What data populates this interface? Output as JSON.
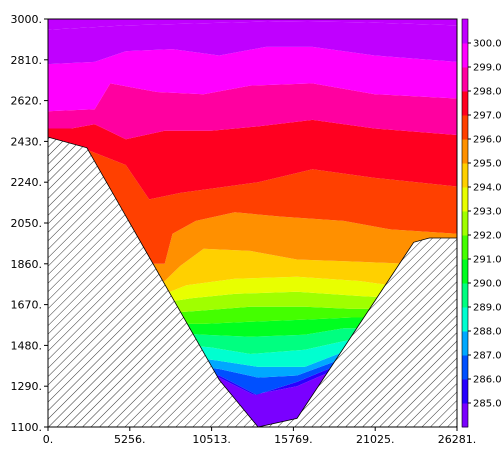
{
  "chart_data": {
    "type": "contour",
    "title": "",
    "xlabel": "",
    "ylabel": "",
    "xlim": [
      0,
      26281
    ],
    "ylim": [
      1100,
      3000
    ],
    "x_ticks": [
      0,
      5256,
      10513,
      15769,
      21025,
      26281
    ],
    "x_tick_labels": [
      "0.",
      "5256.",
      "10513.",
      "15769.",
      "21025.",
      "26281."
    ],
    "y_ticks": [
      1100,
      1290,
      1480,
      1670,
      1860,
      2050,
      2240,
      2430,
      2620,
      2810,
      3000
    ],
    "y_tick_labels": [
      "1100.",
      "1290.",
      "1480.",
      "1670.",
      "1860.",
      "2050.",
      "2240.",
      "2430.",
      "2620.",
      "2810.",
      "3000."
    ],
    "colorbar": {
      "levels": [
        285.0,
        286.0,
        287.0,
        288.0,
        289.0,
        290.0,
        291.0,
        292.0,
        293.0,
        294.0,
        295.0,
        296.0,
        297.0,
        298.0,
        299.0,
        300.0
      ],
      "labels": [
        "285.0",
        "286.0",
        "287.0",
        "288.0",
        "289.0",
        "290.0",
        "291.0",
        "292.0",
        "293.0",
        "294.0",
        "295.0",
        "296.0",
        "297.0",
        "298.0",
        "299.0",
        "300.0"
      ],
      "colors": [
        "#7a00ff",
        "#2800ff",
        "#0050ff",
        "#00a8ff",
        "#00ffd0",
        "#00ff80",
        "#00ff20",
        "#44ff00",
        "#a0ff00",
        "#e8ff00",
        "#ffd000",
        "#ff9000",
        "#ff4000",
        "#ff0020",
        "#ff00a0",
        "#ff00ff",
        "#c000ff"
      ]
    },
    "terrain": {
      "fill": "hatched",
      "outline": [
        [
          0,
          2450
        ],
        [
          2500,
          2400
        ],
        [
          11000,
          1320
        ],
        [
          13500,
          1100
        ],
        [
          16000,
          1140
        ],
        [
          23500,
          1960
        ],
        [
          24500,
          1980
        ],
        [
          26281,
          1980
        ]
      ]
    },
    "contour_boundaries": [
      [
        [
          1500,
          1400
        ],
        [
          7500,
          1400
        ],
        [
          11000,
          1330
        ],
        [
          13200,
          1250
        ],
        [
          16000,
          1290
        ],
        [
          19500,
          1400
        ],
        [
          21500,
          1480
        ],
        [
          26281,
          1480
        ]
      ],
      [
        [
          1500,
          1400
        ],
        [
          7500,
          1400
        ],
        [
          11000,
          1340
        ],
        [
          13400,
          1250
        ],
        [
          16000,
          1310
        ],
        [
          19000,
          1400
        ],
        [
          21000,
          1450
        ],
        [
          26281,
          1450
        ]
      ],
      [
        [
          1500,
          1400
        ],
        [
          7500,
          1400
        ],
        [
          11000,
          1370
        ],
        [
          13500,
          1330
        ],
        [
          16000,
          1340
        ],
        [
          19000,
          1420
        ],
        [
          21000,
          1470
        ],
        [
          26281,
          1470
        ]
      ],
      [
        [
          1500,
          1440
        ],
        [
          7500,
          1440
        ],
        [
          10800,
          1410
        ],
        [
          13500,
          1380
        ],
        [
          16500,
          1380
        ],
        [
          19000,
          1450
        ],
        [
          21000,
          1490
        ],
        [
          26281,
          1490
        ]
      ],
      [
        [
          1500,
          1490
        ],
        [
          7500,
          1490
        ],
        [
          10500,
          1470
        ],
        [
          13000,
          1440
        ],
        [
          16500,
          1460
        ],
        [
          19000,
          1500
        ],
        [
          21000,
          1520
        ],
        [
          26281,
          1520
        ]
      ],
      [
        [
          1500,
          1540
        ],
        [
          7500,
          1540
        ],
        [
          10000,
          1530
        ],
        [
          13000,
          1520
        ],
        [
          16500,
          1530
        ],
        [
          19000,
          1560
        ],
        [
          21500,
          1560
        ],
        [
          26281,
          1560
        ]
      ],
      [
        [
          1500,
          1580
        ],
        [
          7500,
          1580
        ],
        [
          10000,
          1580
        ],
        [
          13000,
          1590
        ],
        [
          16500,
          1600
        ],
        [
          19500,
          1610
        ],
        [
          21500,
          1610
        ],
        [
          26281,
          1610
        ]
      ],
      [
        [
          1500,
          1630
        ],
        [
          7500,
          1630
        ],
        [
          9500,
          1640
        ],
        [
          13000,
          1660
        ],
        [
          16500,
          1660
        ],
        [
          19500,
          1650
        ],
        [
          22000,
          1650
        ],
        [
          26281,
          1650
        ]
      ],
      [
        [
          1500,
          1680
        ],
        [
          7500,
          1680
        ],
        [
          9200,
          1700
        ],
        [
          12000,
          1720
        ],
        [
          16000,
          1730
        ],
        [
          20000,
          1710
        ],
        [
          22500,
          1700
        ],
        [
          26281,
          1700
        ]
      ],
      [
        [
          1500,
          1720
        ],
        [
          7500,
          1720
        ],
        [
          8900,
          1760
        ],
        [
          12000,
          1790
        ],
        [
          16000,
          1800
        ],
        [
          20000,
          1780
        ],
        [
          23000,
          1750
        ],
        [
          26281,
          1750
        ]
      ],
      [
        [
          1500,
          1780
        ],
        [
          7500,
          1780
        ],
        [
          8500,
          1850
        ],
        [
          10000,
          1930
        ],
        [
          13000,
          1920
        ],
        [
          16000,
          1880
        ],
        [
          20000,
          1870
        ],
        [
          23000,
          1860
        ],
        [
          26281,
          1860
        ]
      ],
      [
        [
          1500,
          1860
        ],
        [
          7500,
          1860
        ],
        [
          8000,
          2000
        ],
        [
          9500,
          2060
        ],
        [
          12000,
          2100
        ],
        [
          15000,
          2080
        ],
        [
          19000,
          2060
        ],
        [
          22000,
          2020
        ],
        [
          26281,
          2000
        ]
      ],
      [
        [
          1500,
          2420
        ],
        [
          5000,
          2320
        ],
        [
          6500,
          2160
        ],
        [
          8500,
          2190
        ],
        [
          10500,
          2210
        ],
        [
          13500,
          2240
        ],
        [
          17000,
          2300
        ],
        [
          21000,
          2260
        ],
        [
          26281,
          2220
        ]
      ],
      [
        [
          1500,
          2490
        ],
        [
          3000,
          2510
        ],
        [
          5000,
          2440
        ],
        [
          7500,
          2480
        ],
        [
          10500,
          2480
        ],
        [
          13500,
          2500
        ],
        [
          17000,
          2530
        ],
        [
          21000,
          2490
        ],
        [
          26281,
          2460
        ]
      ],
      [
        [
          0,
          2570
        ],
        [
          3000,
          2580
        ],
        [
          4000,
          2700
        ],
        [
          7000,
          2660
        ],
        [
          10000,
          2650
        ],
        [
          13000,
          2690
        ],
        [
          17000,
          2700
        ],
        [
          21000,
          2650
        ],
        [
          26281,
          2630
        ]
      ],
      [
        [
          0,
          2790
        ],
        [
          3000,
          2800
        ],
        [
          5000,
          2850
        ],
        [
          8000,
          2860
        ],
        [
          11000,
          2830
        ],
        [
          14000,
          2870
        ],
        [
          17000,
          2870
        ],
        [
          21000,
          2830
        ],
        [
          26281,
          2800
        ]
      ],
      [
        [
          0,
          2950
        ],
        [
          5000,
          2970
        ],
        [
          10000,
          2980
        ],
        [
          15000,
          2990
        ],
        [
          20000,
          2985
        ],
        [
          26281,
          2970
        ]
      ]
    ]
  }
}
